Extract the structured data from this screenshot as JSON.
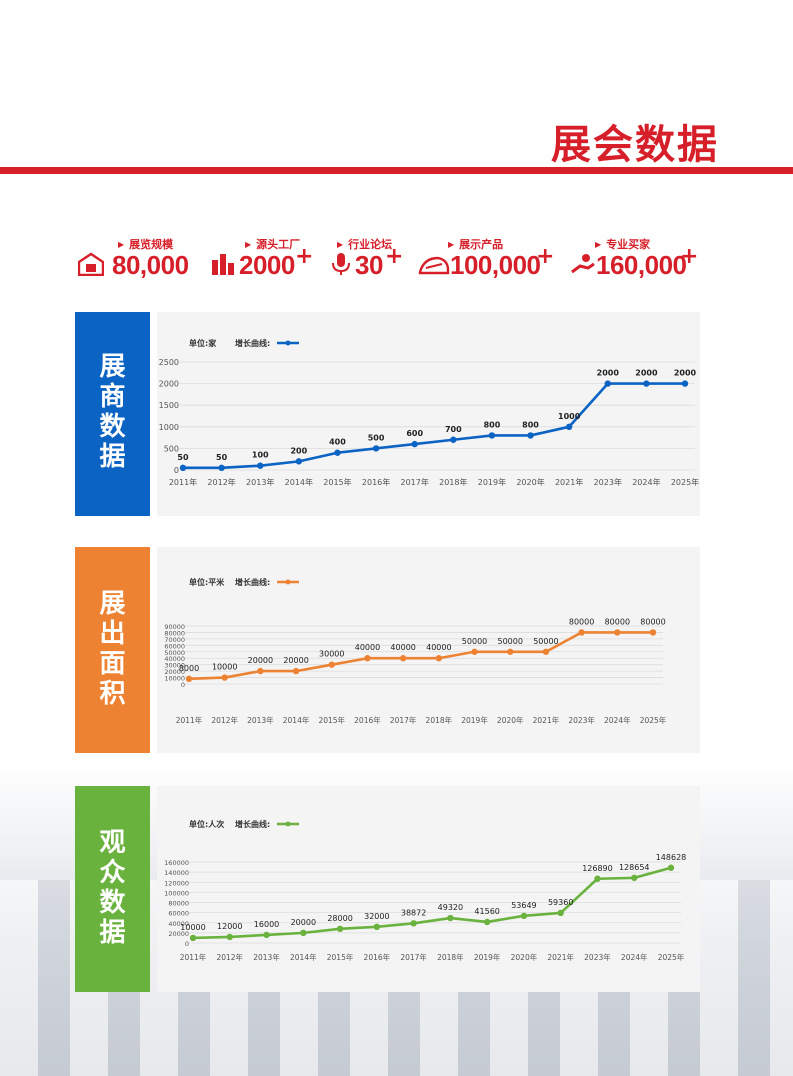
{
  "title": "展会数据",
  "stats": [
    {
      "label": "展览规模",
      "value": "80,000",
      "plus": "",
      "icon": "building-icon"
    },
    {
      "label": "源头工厂",
      "value": "2000",
      "plus": "+",
      "icon": "factory-icon"
    },
    {
      "label": "行业论坛",
      "value": "30",
      "plus": "+",
      "icon": "microphone-icon"
    },
    {
      "label": "展示产品",
      "value": "100,000",
      "plus": "+",
      "icon": "product-icon"
    },
    {
      "label": "专业买家",
      "value": "160,000",
      "plus": "+",
      "icon": "buyer-icon"
    }
  ],
  "sections": [
    {
      "side_label": "展\n商\n数\n据",
      "side_color": "#0b63c4"
    },
    {
      "side_label": "展\n出\n面\n积",
      "side_color": "#ed8233"
    },
    {
      "side_label": "观\n众\n数\n据",
      "side_color": "#6ab23e"
    }
  ],
  "chart_data": [
    {
      "type": "line",
      "unit_label": "单位:家",
      "legend_label": "增长曲线:",
      "color": "#0b63c4",
      "x": [
        "2011年",
        "2012年",
        "2013年",
        "2014年",
        "2015年",
        "2016年",
        "2017年",
        "2018年",
        "2019年",
        "2020年",
        "2021年",
        "2023年",
        "2024年",
        "2025年"
      ],
      "values": [
        50,
        50,
        100,
        200,
        400,
        500,
        600,
        700,
        800,
        800,
        1000,
        2000,
        2000,
        2000
      ],
      "value_labels": [
        "50",
        "50",
        "100",
        "200",
        "400",
        "500",
        "600",
        "700",
        "800",
        "800",
        "1000",
        "2000",
        "2000",
        "2000"
      ],
      "yticks": [
        0,
        500,
        1000,
        1500,
        2000,
        2500
      ],
      "ylim": [
        0,
        2500
      ],
      "grid": true
    },
    {
      "type": "line",
      "unit_label": "单位:平米",
      "legend_label": "增长曲线:",
      "color": "#ed8233",
      "x": [
        "2011年",
        "2012年",
        "2013年",
        "2014年",
        "2015年",
        "2016年",
        "2017年",
        "2018年",
        "2019年",
        "2020年",
        "2021年",
        "2023年",
        "2024年",
        "2025年"
      ],
      "values": [
        8000,
        10000,
        20000,
        20000,
        30000,
        40000,
        40000,
        40000,
        50000,
        50000,
        50000,
        80000,
        80000,
        80000
      ],
      "value_labels": [
        "8000",
        "10000",
        "20000",
        "20000",
        "30000",
        "40000",
        "40000",
        "40000",
        "50000",
        "50000",
        "50000",
        "80000",
        "80000",
        "80000"
      ],
      "yticks": [
        0,
        10000,
        20000,
        30000,
        40000,
        50000,
        60000,
        70000,
        80000,
        90000
      ],
      "ylim": [
        0,
        90000
      ],
      "grid": true
    },
    {
      "type": "line",
      "unit_label": "单位:人次",
      "legend_label": "增长曲线:",
      "color": "#6ab23e",
      "x": [
        "2011年",
        "2012年",
        "2013年",
        "2014年",
        "2015年",
        "2016年",
        "2017年",
        "2018年",
        "2019年",
        "2020年",
        "2021年",
        "2023年",
        "2024年",
        "2025年"
      ],
      "values": [
        10000,
        12000,
        16000,
        20000,
        28000,
        32000,
        38872,
        49320,
        41560,
        53649,
        59360,
        126890,
        128654,
        148628
      ],
      "value_labels": [
        "10000",
        "12000",
        "16000",
        "20000",
        "28000",
        "32000",
        "38872",
        "49320",
        "41560",
        "53649",
        "59360",
        "126890",
        "128654",
        "148628"
      ],
      "yticks": [
        0,
        20000,
        40000,
        60000,
        80000,
        100000,
        120000,
        140000,
        160000
      ],
      "ylim": [
        0,
        160000
      ],
      "grid": true
    }
  ]
}
